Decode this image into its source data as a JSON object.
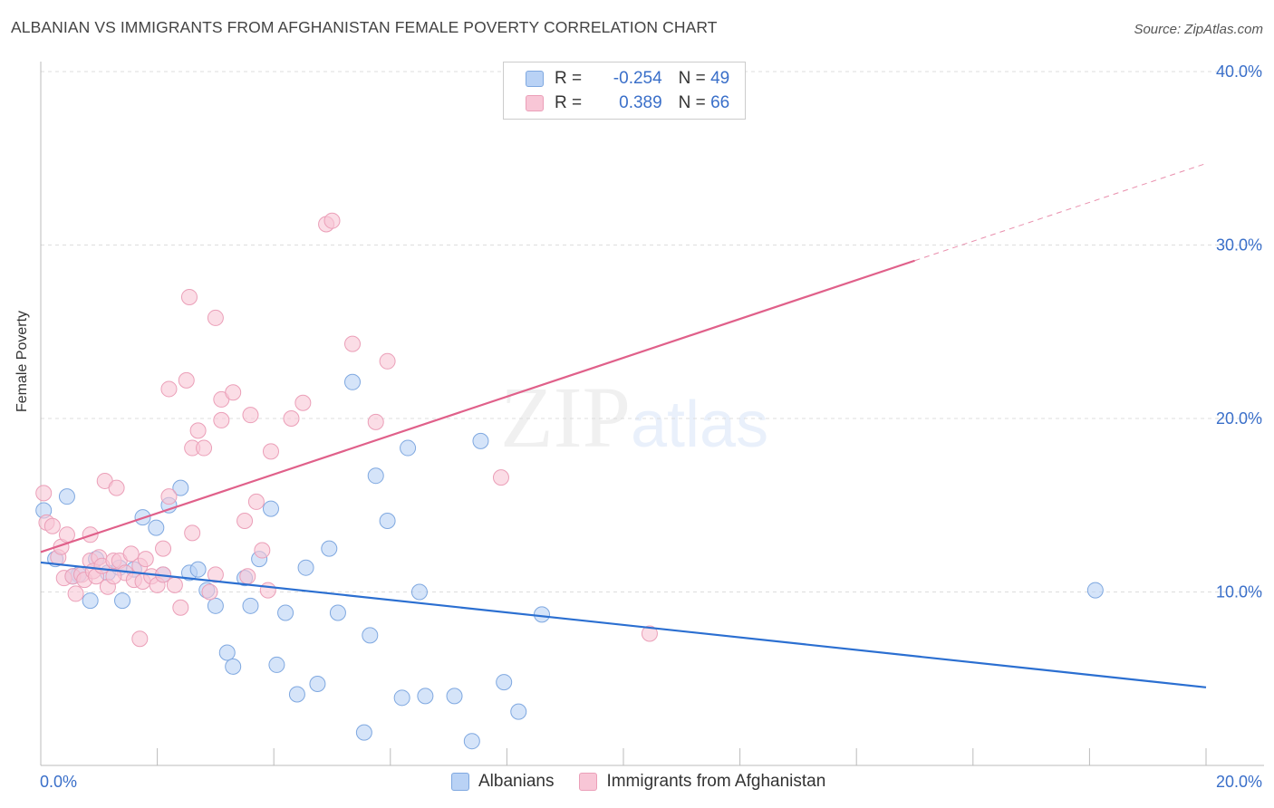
{
  "title": "ALBANIAN VS IMMIGRANTS FROM AFGHANISTAN FEMALE POVERTY CORRELATION CHART",
  "source": "Source: ZipAtlas.com",
  "watermark": {
    "zip": "ZIP",
    "atlas": "atlas"
  },
  "legend_top": {
    "rows": [
      {
        "r_label": "R =",
        "r_value": "-0.254",
        "n_label": "N =",
        "n_value": "49"
      },
      {
        "r_label": "R =",
        "r_value": "0.389",
        "n_label": "N =",
        "n_value": "66"
      }
    ]
  },
  "legend_bottom": {
    "albanians": "Albanians",
    "afghanistan": "Immigrants from Afghanistan"
  },
  "colors": {
    "blue_fill": "#b9d2f5",
    "blue_stroke": "#7fa8e0",
    "blue_line": "#2b6fd1",
    "pink_fill": "#f8c6d6",
    "pink_stroke": "#eb9fb8",
    "pink_line": "#e0608a",
    "axis_text": "#3a6fc9"
  },
  "chart_data": {
    "type": "scatter",
    "title": "ALBANIAN VS IMMIGRANTS FROM AFGHANISTAN FEMALE POVERTY CORRELATION CHART",
    "xlabel": "",
    "ylabel": "Female Poverty",
    "xlim": [
      0,
      20
    ],
    "ylim": [
      0,
      40
    ],
    "x_tick_labels": [
      "0.0%",
      "20.0%"
    ],
    "y_tick_labels": [
      "10.0%",
      "20.0%",
      "30.0%",
      "40.0%"
    ],
    "grid": true,
    "legend_placement": "top-center",
    "series": [
      {
        "name": "Albanians",
        "r": -0.254,
        "n": 49,
        "trend": {
          "x": [
            0,
            20
          ],
          "y": [
            11.7,
            4.5
          ]
        },
        "points": [
          [
            0.05,
            14.7
          ],
          [
            0.45,
            15.5
          ],
          [
            0.25,
            11.9
          ],
          [
            0.95,
            11.9
          ],
          [
            0.65,
            11.0
          ],
          [
            0.55,
            10.9
          ],
          [
            1.15,
            11.1
          ],
          [
            0.85,
            9.5
          ],
          [
            1.35,
            11.4
          ],
          [
            1.4,
            9.5
          ],
          [
            1.75,
            14.3
          ],
          [
            1.98,
            13.7
          ],
          [
            2.2,
            15.0
          ],
          [
            2.4,
            16.0
          ],
          [
            2.1,
            11.0
          ],
          [
            2.55,
            11.1
          ],
          [
            2.7,
            11.3
          ],
          [
            2.85,
            10.1
          ],
          [
            3.0,
            9.2
          ],
          [
            3.2,
            6.5
          ],
          [
            3.3,
            5.7
          ],
          [
            3.5,
            10.8
          ],
          [
            3.6,
            9.2
          ],
          [
            3.75,
            11.9
          ],
          [
            3.95,
            14.8
          ],
          [
            4.05,
            5.8
          ],
          [
            4.2,
            8.8
          ],
          [
            4.4,
            4.1
          ],
          [
            4.55,
            11.4
          ],
          [
            4.75,
            4.7
          ],
          [
            4.95,
            12.5
          ],
          [
            5.1,
            8.8
          ],
          [
            5.35,
            22.1
          ],
          [
            5.55,
            1.9
          ],
          [
            5.65,
            7.5
          ],
          [
            5.75,
            16.7
          ],
          [
            5.95,
            14.1
          ],
          [
            6.2,
            3.9
          ],
          [
            6.3,
            18.3
          ],
          [
            6.5,
            10.0
          ],
          [
            6.6,
            4.0
          ],
          [
            7.1,
            4.0
          ],
          [
            7.4,
            1.4
          ],
          [
            7.55,
            18.7
          ],
          [
            7.95,
            4.8
          ],
          [
            8.2,
            3.1
          ],
          [
            8.6,
            8.7
          ],
          [
            18.1,
            10.1
          ],
          [
            1.6,
            11.3
          ]
        ]
      },
      {
        "name": "Immigrants from Afghanistan",
        "r": 0.389,
        "n": 66,
        "trend": {
          "x": [
            0,
            15.0
          ],
          "y": [
            12.3,
            29.1
          ]
        },
        "dashed_extension": {
          "x": [
            15.0,
            20.0
          ],
          "y": [
            29.1,
            34.7
          ]
        },
        "points": [
          [
            0.05,
            15.7
          ],
          [
            0.1,
            14.0
          ],
          [
            0.2,
            13.8
          ],
          [
            0.3,
            12.0
          ],
          [
            0.35,
            12.6
          ],
          [
            0.4,
            10.8
          ],
          [
            0.45,
            13.3
          ],
          [
            0.55,
            10.9
          ],
          [
            0.6,
            9.9
          ],
          [
            0.7,
            11.0
          ],
          [
            0.75,
            10.7
          ],
          [
            0.85,
            11.8
          ],
          [
            0.85,
            13.3
          ],
          [
            0.9,
            11.2
          ],
          [
            0.95,
            10.9
          ],
          [
            1.0,
            12.0
          ],
          [
            1.05,
            11.5
          ],
          [
            1.1,
            16.4
          ],
          [
            1.15,
            10.3
          ],
          [
            1.25,
            11.8
          ],
          [
            1.3,
            16.0
          ],
          [
            1.35,
            11.8
          ],
          [
            1.45,
            11.1
          ],
          [
            1.55,
            12.2
          ],
          [
            1.6,
            10.7
          ],
          [
            1.7,
            11.5
          ],
          [
            1.7,
            7.3
          ],
          [
            1.75,
            10.6
          ],
          [
            1.8,
            11.9
          ],
          [
            1.9,
            10.9
          ],
          [
            2.0,
            10.4
          ],
          [
            2.1,
            11.0
          ],
          [
            2.1,
            12.5
          ],
          [
            2.2,
            15.5
          ],
          [
            2.2,
            21.7
          ],
          [
            2.3,
            10.4
          ],
          [
            2.4,
            9.1
          ],
          [
            2.5,
            22.2
          ],
          [
            2.55,
            27.0
          ],
          [
            2.6,
            13.4
          ],
          [
            2.6,
            18.3
          ],
          [
            2.7,
            19.3
          ],
          [
            2.8,
            18.3
          ],
          [
            2.9,
            10.0
          ],
          [
            3.0,
            25.8
          ],
          [
            3.0,
            11.0
          ],
          [
            3.1,
            21.1
          ],
          [
            3.1,
            19.9
          ],
          [
            3.3,
            21.5
          ],
          [
            3.5,
            14.1
          ],
          [
            3.55,
            10.9
          ],
          [
            3.6,
            20.2
          ],
          [
            3.7,
            15.2
          ],
          [
            3.8,
            12.4
          ],
          [
            3.9,
            10.1
          ],
          [
            3.95,
            18.1
          ],
          [
            4.3,
            20.0
          ],
          [
            4.5,
            20.9
          ],
          [
            4.9,
            31.2
          ],
          [
            5.0,
            31.4
          ],
          [
            5.35,
            24.3
          ],
          [
            5.75,
            19.8
          ],
          [
            5.95,
            23.3
          ],
          [
            7.9,
            16.6
          ],
          [
            10.45,
            7.6
          ],
          [
            1.25,
            10.9
          ]
        ]
      }
    ]
  }
}
